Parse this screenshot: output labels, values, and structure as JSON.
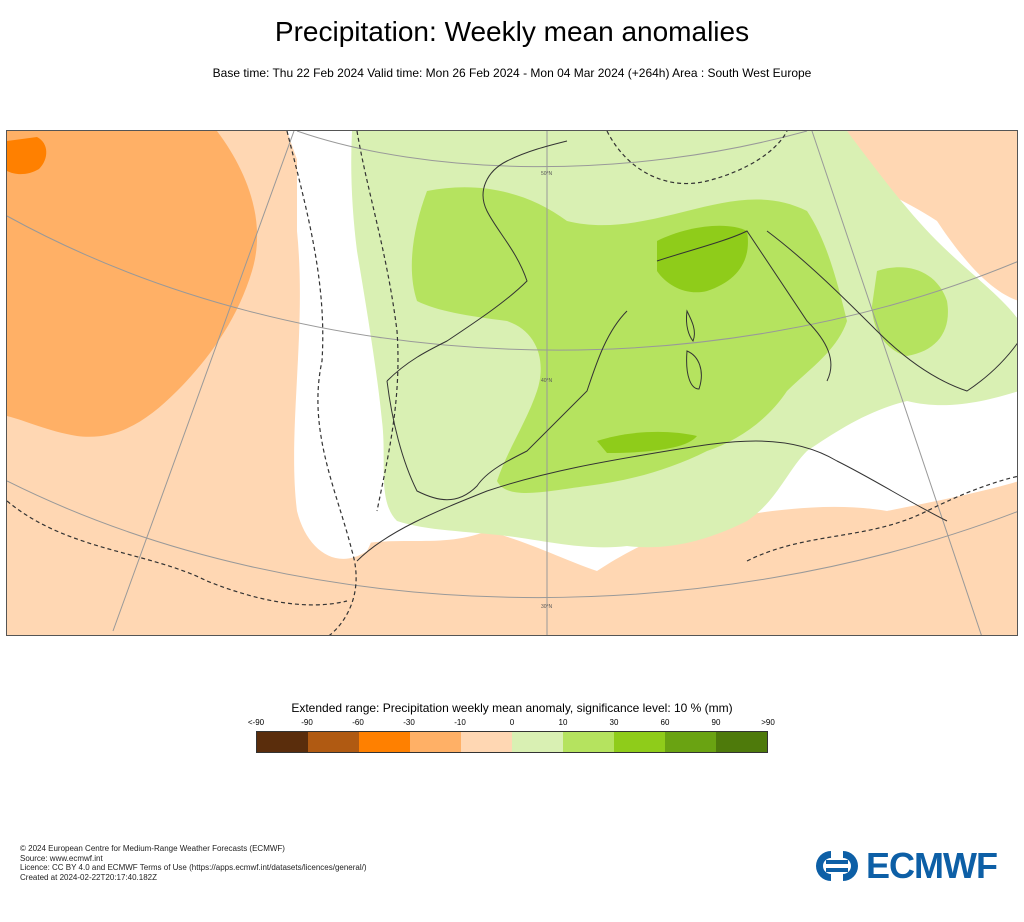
{
  "title": "Precipitation: Weekly mean anomalies",
  "subtitle": "Base time: Thu 22 Feb 2024 Valid time: Mon 26 Feb 2024 - Mon 04 Mar 2024 (+264h) Area : South West Europe",
  "map": {
    "lat_labels": [
      "50°N",
      "40°N",
      "30°N"
    ]
  },
  "legend": {
    "title": "Extended range: Precipitation weekly mean anomaly, significance level: 10 % (mm)",
    "ticks": [
      "<-90",
      "-90",
      "-60",
      "-30",
      "-10",
      "0",
      "10",
      "30",
      "60",
      "90",
      ">90"
    ],
    "colors": [
      "#5a2d0c",
      "#b05a12",
      "#ff8000",
      "#ffb066",
      "#ffd7b3",
      "#d9f0b3",
      "#b5e35f",
      "#8fcc1a",
      "#6aa312",
      "#4e7a0b"
    ]
  },
  "footer": {
    "line1": "© 2024 European Centre for Medium-Range Weather Forecasts (ECMWF)",
    "line2": "Source: www.ecmwf.int",
    "line3": "Licence: CC BY 4.0 and ECMWF Terms of Use (https://apps.ecmwf.int/datasets/licences/general/)",
    "line4": "Created at 2024-02-22T20:17:40.182Z"
  },
  "logo": {
    "text": "ECMWF"
  }
}
